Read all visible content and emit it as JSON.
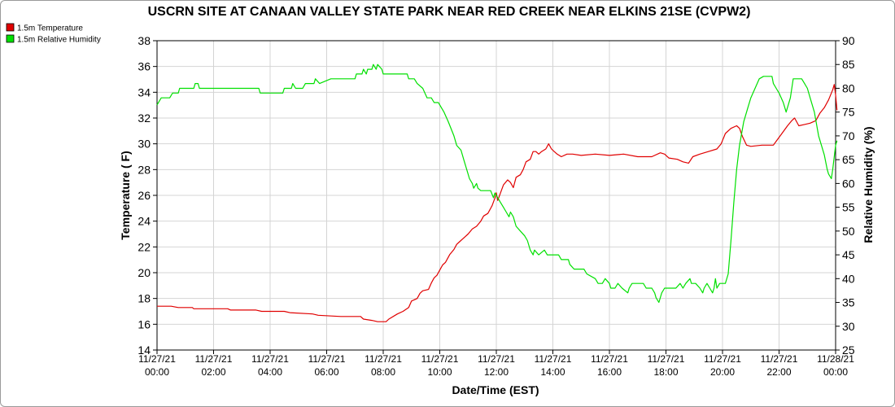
{
  "chart_data": {
    "type": "line",
    "title": "USCRN SITE AT CANAAN VALLEY STATE PARK NEAR RED CREEK NEAR ELKINS 21SE (CVPW2)",
    "xlabel": "Date/Time (EST)",
    "ylabel_left": "Temperature ( F)",
    "ylabel_right": "Relative Humidity (%)",
    "y_left_lim": [
      14,
      38
    ],
    "y_left_ticks": [
      14,
      16,
      18,
      20,
      22,
      24,
      26,
      28,
      30,
      32,
      34,
      36,
      38
    ],
    "y_right_lim": [
      25,
      90
    ],
    "y_right_ticks": [
      25,
      30,
      35,
      40,
      45,
      50,
      55,
      60,
      65,
      70,
      75,
      80,
      85,
      90
    ],
    "x_ticks": [
      {
        "hour": 0,
        "date": "11/27/21",
        "time": "00:00"
      },
      {
        "hour": 2,
        "date": "11/27/21",
        "time": "02:00"
      },
      {
        "hour": 4,
        "date": "11/27/21",
        "time": "04:00"
      },
      {
        "hour": 6,
        "date": "11/27/21",
        "time": "06:00"
      },
      {
        "hour": 8,
        "date": "11/27/21",
        "time": "08:00"
      },
      {
        "hour": 10,
        "date": "11/27/21",
        "time": "10:00"
      },
      {
        "hour": 12,
        "date": "11/27/21",
        "time": "12:00"
      },
      {
        "hour": 14,
        "date": "11/27/21",
        "time": "14:00"
      },
      {
        "hour": 16,
        "date": "11/27/21",
        "time": "16:00"
      },
      {
        "hour": 18,
        "date": "11/27/21",
        "time": "18:00"
      },
      {
        "hour": 20,
        "date": "11/27/21",
        "time": "20:00"
      },
      {
        "hour": 22,
        "date": "11/27/21",
        "time": "22:00"
      },
      {
        "hour": 24,
        "date": "11/28/21",
        "time": "00:00"
      }
    ],
    "grid": true,
    "legend_position": "top-left",
    "series": [
      {
        "name": "1.5m Temperature",
        "color": "#e00000",
        "axis": "left",
        "points": [
          [
            0,
            17.4
          ],
          [
            0.5,
            17.4
          ],
          [
            0.75,
            17.3
          ],
          [
            1.25,
            17.3
          ],
          [
            1.3,
            17.2
          ],
          [
            2.5,
            17.2
          ],
          [
            2.6,
            17.1
          ],
          [
            3.5,
            17.1
          ],
          [
            3.7,
            17.0
          ],
          [
            4.5,
            17.0
          ],
          [
            4.7,
            16.9
          ],
          [
            5.5,
            16.8
          ],
          [
            5.7,
            16.7
          ],
          [
            6.5,
            16.6
          ],
          [
            7.2,
            16.6
          ],
          [
            7.3,
            16.4
          ],
          [
            7.6,
            16.3
          ],
          [
            7.8,
            16.2
          ],
          [
            8.1,
            16.2
          ],
          [
            8.2,
            16.4
          ],
          [
            8.5,
            16.8
          ],
          [
            8.7,
            17.0
          ],
          [
            8.9,
            17.3
          ],
          [
            9.0,
            17.8
          ],
          [
            9.2,
            18.0
          ],
          [
            9.3,
            18.4
          ],
          [
            9.4,
            18.6
          ],
          [
            9.6,
            18.7
          ],
          [
            9.7,
            19.2
          ],
          [
            9.8,
            19.6
          ],
          [
            9.9,
            19.8
          ],
          [
            10.0,
            20.2
          ],
          [
            10.1,
            20.6
          ],
          [
            10.2,
            20.8
          ],
          [
            10.35,
            21.4
          ],
          [
            10.5,
            21.8
          ],
          [
            10.6,
            22.2
          ],
          [
            10.7,
            22.4
          ],
          [
            10.8,
            22.6
          ],
          [
            10.9,
            22.8
          ],
          [
            11.0,
            23.0
          ],
          [
            11.15,
            23.4
          ],
          [
            11.3,
            23.6
          ],
          [
            11.45,
            24.0
          ],
          [
            11.55,
            24.4
          ],
          [
            11.7,
            24.6
          ],
          [
            11.85,
            25.2
          ],
          [
            11.95,
            25.8
          ],
          [
            12.0,
            26.2
          ],
          [
            12.05,
            25.6
          ],
          [
            12.15,
            26.2
          ],
          [
            12.25,
            26.8
          ],
          [
            12.4,
            27.2
          ],
          [
            12.5,
            27.0
          ],
          [
            12.6,
            26.6
          ],
          [
            12.7,
            27.4
          ],
          [
            12.85,
            27.6
          ],
          [
            12.95,
            28.0
          ],
          [
            13.05,
            28.6
          ],
          [
            13.2,
            28.8
          ],
          [
            13.3,
            29.4
          ],
          [
            13.4,
            29.4
          ],
          [
            13.5,
            29.2
          ],
          [
            13.6,
            29.4
          ],
          [
            13.75,
            29.6
          ],
          [
            13.85,
            30.0
          ],
          [
            13.95,
            29.6
          ],
          [
            14.05,
            29.4
          ],
          [
            14.15,
            29.2
          ],
          [
            14.3,
            29.0
          ],
          [
            14.5,
            29.2
          ],
          [
            14.7,
            29.2
          ],
          [
            15.0,
            29.1
          ],
          [
            15.5,
            29.2
          ],
          [
            16.0,
            29.1
          ],
          [
            16.5,
            29.2
          ],
          [
            17.0,
            29.0
          ],
          [
            17.5,
            29.0
          ],
          [
            17.8,
            29.3
          ],
          [
            17.95,
            29.2
          ],
          [
            18.1,
            28.9
          ],
          [
            18.4,
            28.8
          ],
          [
            18.6,
            28.6
          ],
          [
            18.8,
            28.5
          ],
          [
            18.95,
            29.0
          ],
          [
            19.2,
            29.2
          ],
          [
            19.5,
            29.4
          ],
          [
            19.8,
            29.6
          ],
          [
            19.95,
            30.0
          ],
          [
            20.1,
            30.8
          ],
          [
            20.3,
            31.2
          ],
          [
            20.5,
            31.4
          ],
          [
            20.6,
            31.2
          ],
          [
            20.7,
            30.6
          ],
          [
            20.85,
            29.9
          ],
          [
            21.0,
            29.8
          ],
          [
            21.4,
            29.9
          ],
          [
            21.8,
            29.9
          ],
          [
            21.9,
            30.2
          ],
          [
            22.1,
            30.8
          ],
          [
            22.3,
            31.4
          ],
          [
            22.45,
            31.8
          ],
          [
            22.55,
            32.0
          ],
          [
            22.7,
            31.4
          ],
          [
            22.9,
            31.5
          ],
          [
            23.1,
            31.6
          ],
          [
            23.3,
            31.8
          ],
          [
            23.45,
            32.4
          ],
          [
            23.6,
            32.8
          ],
          [
            23.75,
            33.4
          ],
          [
            23.9,
            34.2
          ],
          [
            23.95,
            34.6
          ],
          [
            24.0,
            33.8
          ],
          [
            24.05,
            32.6
          ]
        ]
      },
      {
        "name": "1.5m Relative Humidity",
        "color": "#00e000",
        "axis": "right",
        "points": [
          [
            0,
            76.5
          ],
          [
            0.15,
            78
          ],
          [
            0.45,
            78
          ],
          [
            0.55,
            79
          ],
          [
            0.75,
            79
          ],
          [
            0.8,
            80
          ],
          [
            1.3,
            80
          ],
          [
            1.35,
            81
          ],
          [
            1.45,
            81
          ],
          [
            1.5,
            80
          ],
          [
            3.6,
            80
          ],
          [
            3.65,
            79
          ],
          [
            4.45,
            79
          ],
          [
            4.5,
            80
          ],
          [
            4.75,
            80
          ],
          [
            4.8,
            81
          ],
          [
            4.9,
            80
          ],
          [
            5.15,
            80
          ],
          [
            5.25,
            81
          ],
          [
            5.55,
            81
          ],
          [
            5.6,
            82
          ],
          [
            5.75,
            81
          ],
          [
            6.15,
            82
          ],
          [
            7.0,
            82
          ],
          [
            7.05,
            83
          ],
          [
            7.25,
            83
          ],
          [
            7.3,
            84
          ],
          [
            7.4,
            83
          ],
          [
            7.45,
            84
          ],
          [
            7.6,
            84
          ],
          [
            7.65,
            85
          ],
          [
            7.75,
            84
          ],
          [
            7.8,
            85
          ],
          [
            7.95,
            84
          ],
          [
            8.0,
            83
          ],
          [
            8.85,
            83
          ],
          [
            8.9,
            82
          ],
          [
            9.1,
            82
          ],
          [
            9.2,
            81
          ],
          [
            9.4,
            80
          ],
          [
            9.55,
            78
          ],
          [
            9.7,
            78
          ],
          [
            9.8,
            77
          ],
          [
            9.95,
            77
          ],
          [
            10.05,
            76
          ],
          [
            10.15,
            75
          ],
          [
            10.3,
            73
          ],
          [
            10.5,
            70
          ],
          [
            10.6,
            68
          ],
          [
            10.75,
            67
          ],
          [
            10.85,
            65
          ],
          [
            10.95,
            63
          ],
          [
            11.05,
            61
          ],
          [
            11.15,
            60
          ],
          [
            11.2,
            59
          ],
          [
            11.3,
            60
          ],
          [
            11.35,
            59
          ],
          [
            11.45,
            58.5
          ],
          [
            11.8,
            58.5
          ],
          [
            11.9,
            57
          ],
          [
            11.95,
            58
          ],
          [
            12.05,
            57
          ],
          [
            12.15,
            56
          ],
          [
            12.25,
            55
          ],
          [
            12.35,
            54
          ],
          [
            12.45,
            53
          ],
          [
            12.5,
            54
          ],
          [
            12.6,
            53
          ],
          [
            12.7,
            51
          ],
          [
            12.85,
            50
          ],
          [
            13.0,
            49
          ],
          [
            13.1,
            48
          ],
          [
            13.2,
            46
          ],
          [
            13.3,
            45
          ],
          [
            13.35,
            46
          ],
          [
            13.5,
            45
          ],
          [
            13.7,
            46
          ],
          [
            13.8,
            45
          ],
          [
            14.2,
            45
          ],
          [
            14.3,
            44
          ],
          [
            14.55,
            44
          ],
          [
            14.6,
            43
          ],
          [
            14.75,
            42
          ],
          [
            15.1,
            42
          ],
          [
            15.2,
            41
          ],
          [
            15.5,
            40
          ],
          [
            15.6,
            39
          ],
          [
            15.75,
            39
          ],
          [
            15.85,
            40
          ],
          [
            16.0,
            39
          ],
          [
            16.05,
            38
          ],
          [
            16.2,
            38
          ],
          [
            16.3,
            39
          ],
          [
            16.45,
            38
          ],
          [
            16.65,
            37
          ],
          [
            16.7,
            38
          ],
          [
            16.8,
            39
          ],
          [
            17.2,
            39
          ],
          [
            17.3,
            38
          ],
          [
            17.5,
            38
          ],
          [
            17.6,
            37
          ],
          [
            17.65,
            36
          ],
          [
            17.75,
            35
          ],
          [
            17.85,
            37
          ],
          [
            17.95,
            38
          ],
          [
            18.1,
            38
          ],
          [
            18.35,
            38
          ],
          [
            18.5,
            39
          ],
          [
            18.6,
            38
          ],
          [
            18.7,
            39
          ],
          [
            18.85,
            40
          ],
          [
            18.9,
            39
          ],
          [
            19.05,
            39
          ],
          [
            19.2,
            38
          ],
          [
            19.3,
            37
          ],
          [
            19.35,
            38
          ],
          [
            19.45,
            39
          ],
          [
            19.55,
            38
          ],
          [
            19.65,
            37
          ],
          [
            19.7,
            38
          ],
          [
            19.75,
            40
          ],
          [
            19.8,
            38
          ],
          [
            19.9,
            39
          ],
          [
            20.1,
            39
          ],
          [
            20.2,
            41
          ],
          [
            20.3,
            48
          ],
          [
            20.4,
            56
          ],
          [
            20.5,
            63
          ],
          [
            20.6,
            68
          ],
          [
            20.75,
            73
          ],
          [
            20.9,
            76
          ],
          [
            21.0,
            78
          ],
          [
            21.15,
            80
          ],
          [
            21.3,
            82
          ],
          [
            21.45,
            82.5
          ],
          [
            21.75,
            82.5
          ],
          [
            21.8,
            81
          ],
          [
            21.9,
            80
          ],
          [
            22.0,
            79
          ],
          [
            22.15,
            77
          ],
          [
            22.25,
            75
          ],
          [
            22.4,
            78
          ],
          [
            22.5,
            82
          ],
          [
            22.8,
            82
          ],
          [
            22.9,
            81
          ],
          [
            23.0,
            80
          ],
          [
            23.1,
            78
          ],
          [
            23.25,
            75
          ],
          [
            23.4,
            70
          ],
          [
            23.5,
            68
          ],
          [
            23.6,
            66
          ],
          [
            23.7,
            63
          ],
          [
            23.75,
            62
          ],
          [
            23.85,
            61
          ],
          [
            23.9,
            63
          ],
          [
            24.0,
            68
          ],
          [
            24.05,
            69
          ]
        ]
      }
    ]
  }
}
